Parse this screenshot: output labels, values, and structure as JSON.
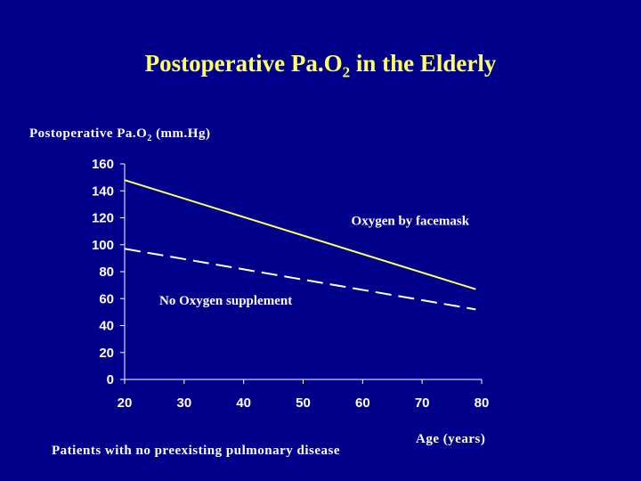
{
  "slide": {
    "title_main": "Postoperative Pa.O",
    "title_sub": "2",
    "title_rest": " in the Elderly",
    "ylabel_main": "Postoperative  Pa.O",
    "ylabel_sub": "2",
    "ylabel_rest": "  (mm.Hg)",
    "xlabel": "Age (years)",
    "footer": "Patients with no preexisting pulmonary disease"
  },
  "colors": {
    "background": "#00008b",
    "title": "#ffff66",
    "facemask_line": "#ffff66",
    "no_oxygen_line": "#ffffff",
    "text": "#ffffff"
  },
  "chart_data": {
    "type": "line",
    "x": [
      20,
      80
    ],
    "xlim": [
      20,
      80
    ],
    "ylim": [
      0,
      160
    ],
    "xticks": [
      20,
      30,
      40,
      50,
      60,
      70,
      80
    ],
    "yticks": [
      0,
      20,
      40,
      60,
      80,
      100,
      120,
      140,
      160
    ],
    "grid": false,
    "legend": "none",
    "series": [
      {
        "name": "Oxygen by facemask",
        "x": [
          20,
          79
        ],
        "values": [
          148,
          67
        ],
        "style": "solid",
        "color": "#ffff66"
      },
      {
        "name": "No Oxygen supplement",
        "x": [
          20,
          79
        ],
        "values": [
          97,
          52
        ],
        "style": "dashed",
        "color": "#ffffff"
      }
    ],
    "annotations": [
      {
        "text": "Oxygen by facemask",
        "x": 68,
        "y": 118
      },
      {
        "text": "No Oxygen supplement",
        "x": 37,
        "y": 59
      }
    ]
  }
}
